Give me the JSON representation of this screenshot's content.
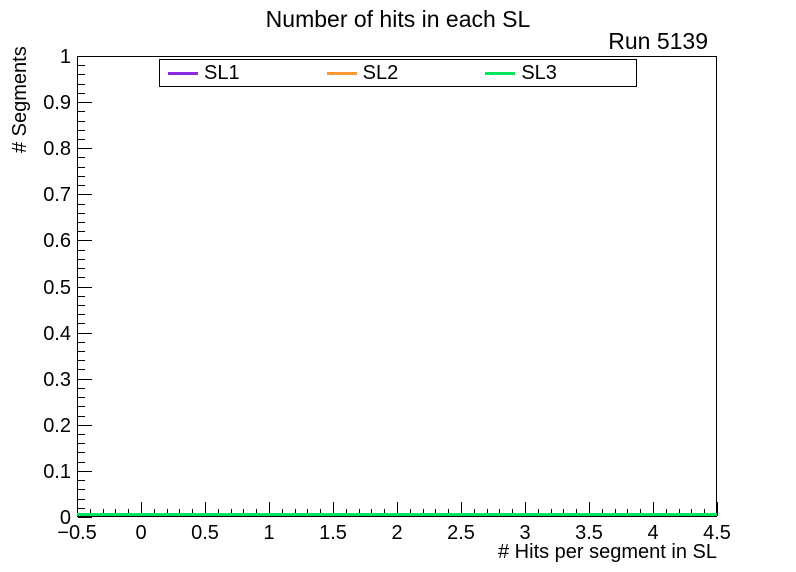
{
  "header": {
    "run_label": "Run 5139"
  },
  "chart_data": {
    "type": "line",
    "title": "Number of hits in each SL",
    "xlabel": "# Hits per segment in SL",
    "ylabel": "# Segments",
    "xlim": [
      -0.5,
      4.5
    ],
    "ylim": [
      0,
      1
    ],
    "grid": false,
    "legend_position": "top-inside",
    "x_major_tick_step": 0.5,
    "x_minor_tick_step": 0.1,
    "y_major_tick_step": 0.1,
    "y_minor_tick_step": 0.02,
    "x_tick_labels": [
      "−0.5",
      "0",
      "0.5",
      "1",
      "1.5",
      "2",
      "2.5",
      "3",
      "3.5",
      "4",
      "4.5"
    ],
    "y_tick_labels": [
      "0",
      "0.1",
      "0.2",
      "0.3",
      "0.4",
      "0.5",
      "0.6",
      "0.7",
      "0.8",
      "0.9",
      "1"
    ],
    "series": [
      {
        "name": "SL1",
        "color": "#8a2be2",
        "x": [
          0,
          1,
          2,
          3,
          4
        ],
        "values": [
          0,
          0,
          0,
          0,
          0
        ]
      },
      {
        "name": "SL2",
        "color": "#ff9933",
        "x": [
          0,
          1,
          2,
          3,
          4
        ],
        "values": [
          0,
          0,
          0,
          0,
          0
        ]
      },
      {
        "name": "SL3",
        "color": "#00e65c",
        "x": [
          0,
          1,
          2,
          3,
          4
        ],
        "values": [
          0,
          0,
          0,
          0,
          0
        ]
      }
    ]
  }
}
